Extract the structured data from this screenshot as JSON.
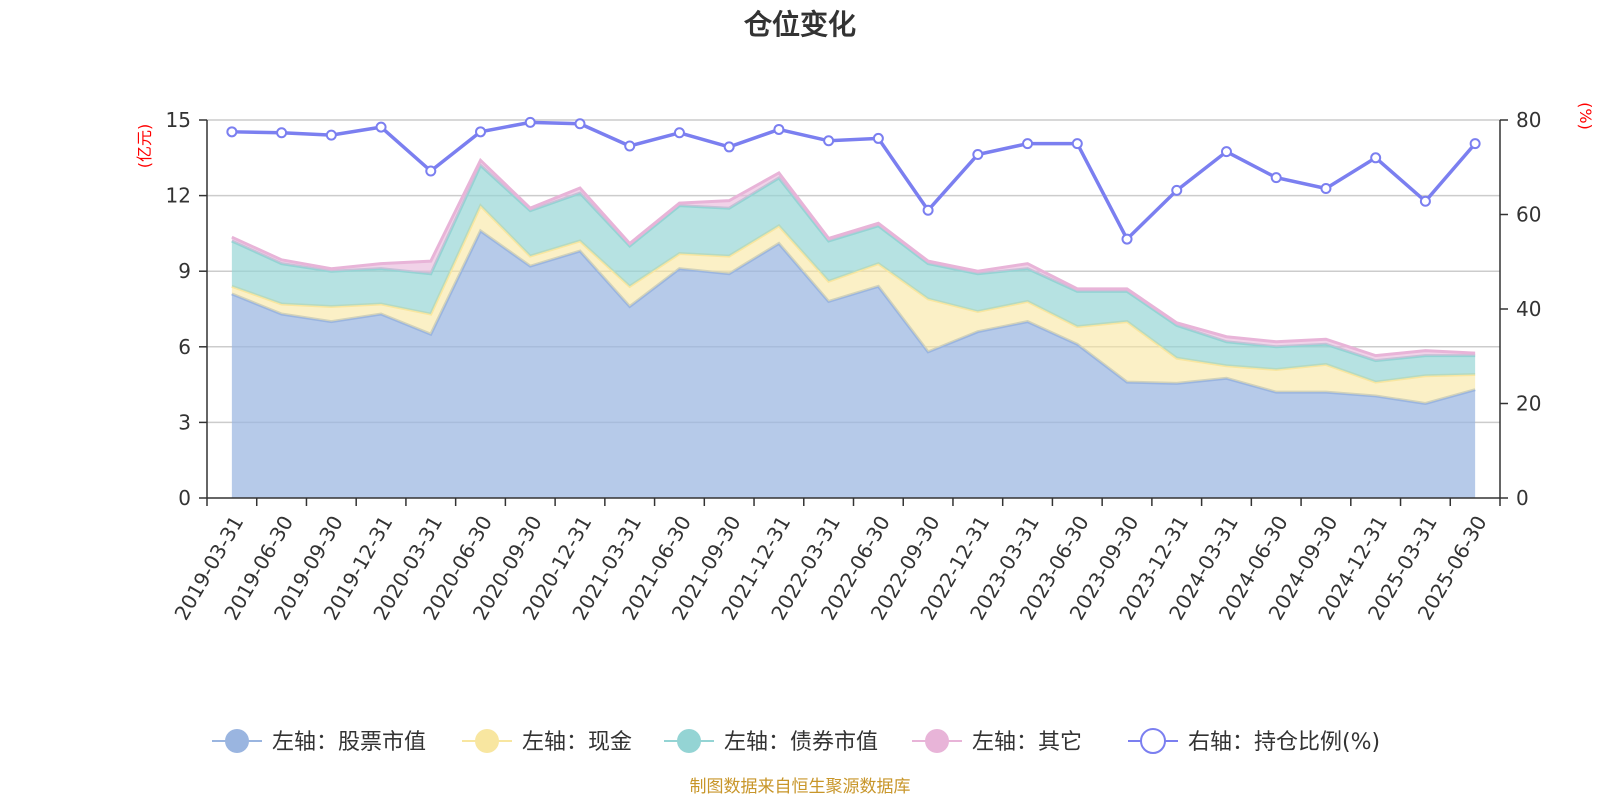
{
  "title": "仓位变化",
  "units": {
    "left": "(亿元)",
    "right": "(%)"
  },
  "source_note": "制图数据来自恒生聚源数据库",
  "colors": {
    "stock": "#9ab5e0",
    "cash": "#f8e6a0",
    "bond": "#94d4d4",
    "other": "#e8b4d8",
    "ratio": "#7b7ff0"
  },
  "chart_data": {
    "type": "area",
    "title": "仓位变化",
    "categories": [
      "2019-03-31",
      "2019-06-30",
      "2019-09-30",
      "2019-12-31",
      "2020-03-31",
      "2020-06-30",
      "2020-09-30",
      "2020-12-31",
      "2021-03-31",
      "2021-06-30",
      "2021-09-30",
      "2021-12-31",
      "2022-03-31",
      "2022-06-30",
      "2022-09-30",
      "2022-12-31",
      "2023-03-31",
      "2023-06-30",
      "2023-09-30",
      "2023-12-31",
      "2024-03-31",
      "2024-06-30",
      "2024-09-30",
      "2024-12-31",
      "2025-03-31",
      "2025-06-30"
    ],
    "stacked": true,
    "y_left": {
      "label": "(亿元)",
      "ylim": [
        0,
        15
      ],
      "ticks": [
        0,
        3,
        6,
        9,
        12,
        15
      ]
    },
    "y_right": {
      "label": "(%)",
      "ylim": [
        0,
        80
      ],
      "ticks": [
        0,
        20,
        40,
        60,
        80
      ]
    },
    "grid": true,
    "legend": "bottom",
    "series": [
      {
        "name": "左轴：股票市值",
        "axis": "left",
        "type": "area",
        "values": [
          8.1,
          7.3,
          7.0,
          7.3,
          6.5,
          10.6,
          9.2,
          9.8,
          7.6,
          9.1,
          8.9,
          10.1,
          7.8,
          8.4,
          5.8,
          6.6,
          7.0,
          6.1,
          4.6,
          4.55,
          4.75,
          4.2,
          4.2,
          4.05,
          3.75,
          4.3
        ]
      },
      {
        "name": "左轴：现金",
        "axis": "left",
        "type": "area",
        "values": [
          0.3,
          0.4,
          0.6,
          0.4,
          0.8,
          1.0,
          0.4,
          0.4,
          0.8,
          0.6,
          0.7,
          0.7,
          0.8,
          0.9,
          2.1,
          0.8,
          0.8,
          0.7,
          2.4,
          1.0,
          0.5,
          0.9,
          1.1,
          0.55,
          1.1,
          0.6
        ]
      },
      {
        "name": "左轴：债券市值",
        "axis": "left",
        "type": "area",
        "values": [
          1.8,
          1.6,
          1.4,
          1.4,
          1.6,
          1.6,
          1.8,
          1.9,
          1.6,
          1.9,
          1.9,
          1.9,
          1.6,
          1.5,
          1.4,
          1.5,
          1.3,
          1.4,
          1.2,
          1.3,
          0.95,
          0.9,
          0.8,
          0.85,
          0.8,
          0.75
        ]
      },
      {
        "name": "左轴：其它",
        "axis": "left",
        "type": "area",
        "values": [
          0.15,
          0.15,
          0.1,
          0.2,
          0.5,
          0.2,
          0.1,
          0.2,
          0.1,
          0.1,
          0.3,
          0.2,
          0.1,
          0.1,
          0.1,
          0.1,
          0.2,
          0.1,
          0.1,
          0.1,
          0.2,
          0.2,
          0.2,
          0.2,
          0.2,
          0.1
        ]
      },
      {
        "name": "右轴：持仓比例(%)",
        "axis": "right",
        "type": "line",
        "values": [
          77.5,
          77.3,
          76.8,
          78.5,
          69.2,
          77.5,
          79.5,
          79.2,
          74.5,
          77.3,
          74.3,
          78.0,
          75.6,
          76.1,
          60.9,
          72.7,
          75.0,
          75.0,
          54.8,
          65.1,
          73.3,
          67.8,
          65.5,
          72.0,
          62.8,
          75.0
        ]
      }
    ]
  }
}
